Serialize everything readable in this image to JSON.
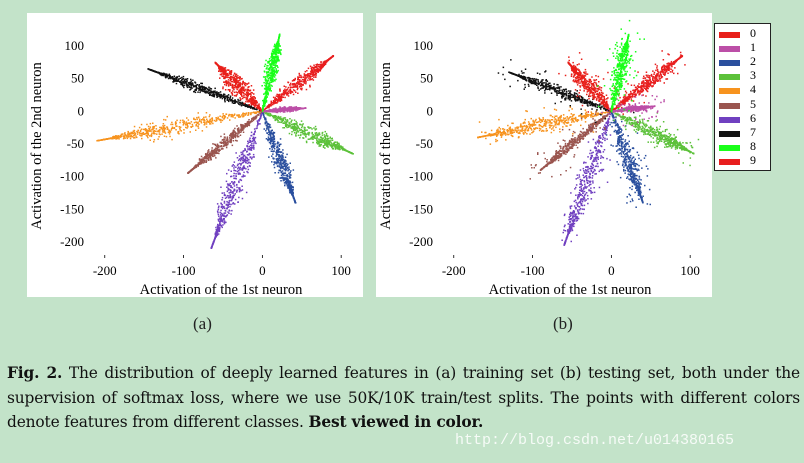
{
  "chart_data": [
    {
      "type": "scatter",
      "panel_label": "(a)",
      "xlabel": "Activation of the 1st neuron",
      "ylabel": "Activation of the 2nd neuron",
      "xlim": [
        -220,
        115
      ],
      "ylim": [
        -220,
        120
      ],
      "xticks": [
        -200,
        -100,
        0,
        100
      ],
      "yticks": [
        100,
        50,
        0,
        -50,
        -100,
        -150,
        -200
      ],
      "series": [
        {
          "name": "0",
          "color": "#e8201a",
          "tip": [
            -60,
            75
          ],
          "tip_width": 22
        },
        {
          "name": "1",
          "color": "#bc4fa7",
          "tip": [
            55,
            5
          ],
          "tip_width": 6
        },
        {
          "name": "2",
          "color": "#2a4f9e",
          "tip": [
            42,
            -140
          ],
          "tip_width": 16
        },
        {
          "name": "3",
          "color": "#5cc13a",
          "tip": [
            115,
            -65
          ],
          "tip_width": 18
        },
        {
          "name": "4",
          "color": "#f7931e",
          "tip": [
            -210,
            -45
          ],
          "tip_width": 22
        },
        {
          "name": "5",
          "color": "#9a554f",
          "tip": [
            -95,
            -95
          ],
          "tip_width": 12
        },
        {
          "name": "6",
          "color": "#7040c0",
          "tip": [
            -65,
            -210
          ],
          "tip_width": 22
        },
        {
          "name": "7",
          "color": "#111111",
          "tip": [
            -145,
            65
          ],
          "tip_width": 12
        },
        {
          "name": "8",
          "color": "#1aff1a",
          "tip": [
            22,
            118
          ],
          "tip_width": 14
        },
        {
          "name": "9",
          "color": "#e81e1e",
          "tip": [
            90,
            85
          ],
          "tip_width": 16
        }
      ]
    },
    {
      "type": "scatter",
      "panel_label": "(b)",
      "xlabel": "Activation of the 1st neuron",
      "ylabel": "Activation of the 2nd neuron",
      "xlim": [
        -220,
        115
      ],
      "ylim": [
        -220,
        120
      ],
      "xticks": [
        -200,
        -100,
        0,
        100
      ],
      "yticks": [
        100,
        50,
        0,
        -50,
        -100,
        -150,
        -200
      ],
      "series": [
        {
          "name": "0",
          "color": "#e8201a",
          "tip": [
            -55,
            75
          ],
          "tip_width": 20
        },
        {
          "name": "1",
          "color": "#bc4fa7",
          "tip": [
            55,
            8
          ],
          "tip_width": 6
        },
        {
          "name": "2",
          "color": "#2a4f9e",
          "tip": [
            40,
            -140
          ],
          "tip_width": 16
        },
        {
          "name": "3",
          "color": "#5cc13a",
          "tip": [
            105,
            -65
          ],
          "tip_width": 18
        },
        {
          "name": "4",
          "color": "#f7931e",
          "tip": [
            -170,
            -40
          ],
          "tip_width": 20
        },
        {
          "name": "5",
          "color": "#9a554f",
          "tip": [
            -90,
            -90
          ],
          "tip_width": 12
        },
        {
          "name": "6",
          "color": "#7040c0",
          "tip": [
            -60,
            -205
          ],
          "tip_width": 20
        },
        {
          "name": "7",
          "color": "#111111",
          "tip": [
            -130,
            60
          ],
          "tip_width": 12
        },
        {
          "name": "8",
          "color": "#1aff1a",
          "tip": [
            22,
            118
          ],
          "tip_width": 14
        },
        {
          "name": "9",
          "color": "#e81e1e",
          "tip": [
            90,
            85
          ],
          "tip_width": 16
        }
      ]
    }
  ],
  "legend": [
    "0",
    "1",
    "2",
    "3",
    "4",
    "5",
    "6",
    "7",
    "8",
    "9"
  ],
  "legend_colors": [
    "#e8201a",
    "#bc4fa7",
    "#2a4f9e",
    "#5cc13a",
    "#f7931e",
    "#9a554f",
    "#7040c0",
    "#111111",
    "#1aff1a",
    "#e81e1e"
  ],
  "caption": {
    "label": "Fig. 2.",
    "text": " The distribution of deeply learned features in (a) training set (b) testing set, both under the supervision of softmax loss, where we use 50K/10K train/test splits. The points with different colors denote features from different classes. ",
    "bold_tail": "Best viewed in color."
  },
  "watermark": "http://blog.csdn.net/u014380165"
}
